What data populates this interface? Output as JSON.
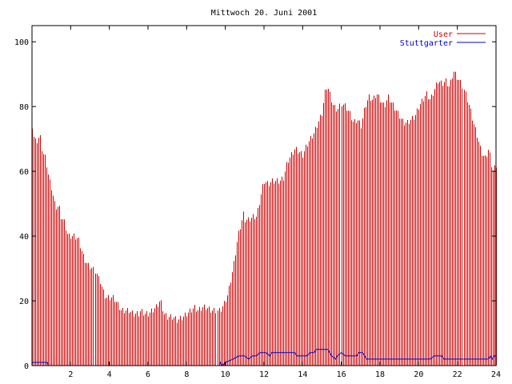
{
  "chart_data": {
    "type": "bar",
    "title": "Mittwoch 20. Juni 2001",
    "xlabel": "",
    "ylabel": "",
    "xlim": [
      0,
      24
    ],
    "ylim": [
      0,
      105
    ],
    "x_ticks": [
      2,
      4,
      6,
      8,
      10,
      12,
      14,
      16,
      18,
      20,
      22,
      24
    ],
    "y_ticks": [
      0,
      20,
      40,
      60,
      80,
      100
    ],
    "grid": false,
    "legend_position": "top-right",
    "sample_interval_hours": 0.0833,
    "series": [
      {
        "name": "User",
        "style": "impulses",
        "color": "#cc0000",
        "keypoints": [
          [
            0.0,
            74
          ],
          [
            0.1,
            70
          ],
          [
            0.2,
            69
          ],
          [
            0.4,
            71
          ],
          [
            0.5,
            67
          ],
          [
            0.6,
            65
          ],
          [
            0.7,
            64
          ],
          [
            0.8,
            60
          ],
          [
            0.9,
            57
          ],
          [
            1.0,
            55
          ],
          [
            1.1,
            52
          ],
          [
            1.2,
            49
          ],
          [
            1.4,
            49
          ],
          [
            1.5,
            46
          ],
          [
            1.7,
            44
          ],
          [
            1.8,
            41
          ],
          [
            1.9,
            40
          ],
          [
            2.2,
            40
          ],
          [
            2.4,
            39
          ],
          [
            2.5,
            37
          ],
          [
            2.6,
            35
          ],
          [
            2.7,
            33
          ],
          [
            2.9,
            31
          ],
          [
            3.1,
            30
          ],
          [
            3.3,
            29
          ],
          [
            3.4,
            27
          ],
          [
            3.5,
            26
          ],
          [
            3.6,
            24
          ],
          [
            3.7,
            22
          ],
          [
            3.8,
            21
          ],
          [
            4.2,
            21
          ],
          [
            4.3,
            20
          ],
          [
            4.4,
            19
          ],
          [
            4.5,
            18
          ],
          [
            4.6,
            17
          ],
          [
            5.0,
            17
          ],
          [
            5.2,
            16
          ],
          [
            5.5,
            16
          ],
          [
            5.6,
            17
          ],
          [
            5.8,
            16
          ],
          [
            6.0,
            16
          ],
          [
            6.2,
            17
          ],
          [
            6.4,
            18
          ],
          [
            6.6,
            20
          ],
          [
            6.7,
            19
          ],
          [
            6.8,
            16
          ],
          [
            7.0,
            15
          ],
          [
            7.3,
            15
          ],
          [
            7.5,
            14
          ],
          [
            7.8,
            15
          ],
          [
            8.0,
            16
          ],
          [
            8.2,
            17
          ],
          [
            8.4,
            18
          ],
          [
            8.6,
            17
          ],
          [
            8.8,
            18
          ],
          [
            9.0,
            18
          ],
          [
            9.3,
            17
          ],
          [
            9.5,
            17
          ],
          [
            9.7,
            17
          ],
          [
            9.9,
            19
          ],
          [
            10.1,
            22
          ],
          [
            10.3,
            28
          ],
          [
            10.4,
            31
          ],
          [
            10.5,
            35
          ],
          [
            10.6,
            39
          ],
          [
            10.7,
            42
          ],
          [
            10.8,
            44
          ],
          [
            10.9,
            47
          ],
          [
            11.0,
            45
          ],
          [
            11.2,
            45
          ],
          [
            11.4,
            46
          ],
          [
            11.6,
            46
          ],
          [
            11.8,
            52
          ],
          [
            11.9,
            55
          ],
          [
            12.0,
            57
          ],
          [
            12.2,
            56
          ],
          [
            12.4,
            57
          ],
          [
            12.6,
            57
          ],
          [
            12.8,
            57
          ],
          [
            13.0,
            58
          ],
          [
            13.2,
            63
          ],
          [
            13.4,
            65
          ],
          [
            13.6,
            67
          ],
          [
            13.8,
            66
          ],
          [
            14.0,
            65
          ],
          [
            14.2,
            68
          ],
          [
            14.4,
            70
          ],
          [
            14.6,
            72
          ],
          [
            14.8,
            75
          ],
          [
            15.0,
            78
          ],
          [
            15.1,
            82
          ],
          [
            15.2,
            86
          ],
          [
            15.3,
            86
          ],
          [
            15.4,
            84
          ],
          [
            15.6,
            80
          ],
          [
            15.8,
            79
          ],
          [
            16.0,
            81
          ],
          [
            16.2,
            80
          ],
          [
            16.4,
            78
          ],
          [
            16.6,
            75
          ],
          [
            16.8,
            76
          ],
          [
            17.0,
            74
          ],
          [
            17.2,
            80
          ],
          [
            17.4,
            83
          ],
          [
            17.6,
            82
          ],
          [
            17.8,
            84
          ],
          [
            18.0,
            82
          ],
          [
            18.2,
            80
          ],
          [
            18.4,
            83
          ],
          [
            18.6,
            81
          ],
          [
            18.8,
            79
          ],
          [
            19.0,
            77
          ],
          [
            19.2,
            75
          ],
          [
            19.4,
            75
          ],
          [
            19.6,
            76
          ],
          [
            19.8,
            77
          ],
          [
            20.0,
            80
          ],
          [
            20.2,
            82
          ],
          [
            20.4,
            84
          ],
          [
            20.6,
            82
          ],
          [
            20.8,
            85
          ],
          [
            21.0,
            88
          ],
          [
            21.2,
            87
          ],
          [
            21.4,
            88
          ],
          [
            21.6,
            86
          ],
          [
            21.8,
            91
          ],
          [
            22.0,
            89
          ],
          [
            22.2,
            87
          ],
          [
            22.4,
            84
          ],
          [
            22.6,
            80
          ],
          [
            22.8,
            75
          ],
          [
            23.0,
            71
          ],
          [
            23.2,
            66
          ],
          [
            23.4,
            64
          ],
          [
            23.6,
            67
          ],
          [
            23.8,
            60
          ],
          [
            24.0,
            62
          ]
        ]
      },
      {
        "name": "Stuttgarter",
        "style": "line",
        "color": "#0000cc",
        "points": [
          [
            0.0,
            1
          ],
          [
            0.8,
            1
          ],
          [
            0.85,
            0
          ],
          [
            9.7,
            0
          ],
          [
            9.75,
            1
          ],
          [
            9.85,
            0
          ],
          [
            10.0,
            1
          ],
          [
            10.4,
            2
          ],
          [
            10.7,
            3
          ],
          [
            11.0,
            3
          ],
          [
            11.2,
            2
          ],
          [
            11.4,
            3
          ],
          [
            11.6,
            3
          ],
          [
            11.8,
            4
          ],
          [
            12.1,
            4
          ],
          [
            12.3,
            3
          ],
          [
            12.4,
            4
          ],
          [
            13.6,
            4
          ],
          [
            13.7,
            3
          ],
          [
            14.2,
            3
          ],
          [
            14.4,
            4
          ],
          [
            14.6,
            4
          ],
          [
            14.7,
            5
          ],
          [
            15.3,
            5
          ],
          [
            15.5,
            3
          ],
          [
            15.7,
            2
          ],
          [
            15.8,
            3
          ],
          [
            16.0,
            4
          ],
          [
            16.2,
            3
          ],
          [
            16.8,
            3
          ],
          [
            16.9,
            4
          ],
          [
            17.1,
            4
          ],
          [
            17.3,
            2
          ],
          [
            20.6,
            2
          ],
          [
            20.8,
            3
          ],
          [
            21.2,
            3
          ],
          [
            21.3,
            2
          ],
          [
            23.6,
            2
          ],
          [
            23.7,
            3
          ],
          [
            23.8,
            2
          ],
          [
            23.9,
            3
          ],
          [
            24.0,
            3
          ]
        ]
      }
    ]
  }
}
